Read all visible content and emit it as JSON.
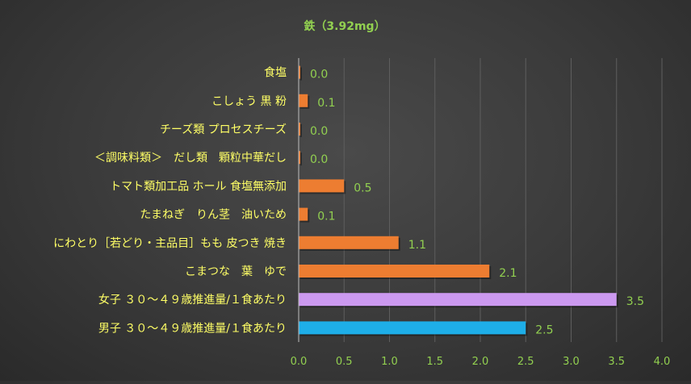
{
  "chart_data": {
    "type": "bar",
    "orientation": "horizontal",
    "title": "鉄（3.92mg）",
    "xlabel": "",
    "ylabel": "",
    "xlim": [
      0,
      4.0
    ],
    "x_ticks": [
      "0.0",
      "0.5",
      "1.0",
      "1.5",
      "2.0",
      "2.5",
      "3.0",
      "3.5",
      "4.0"
    ],
    "grid": true,
    "legend": "none",
    "categories": [
      "食塩",
      "こしょう 黒 粉",
      "チーズ類 プロセスチーズ",
      "＜調味料類＞　だし類　顆粒中華だし",
      "トマト類加工品 ホール 食塩無添加",
      "たまねぎ　りん茎　油いため",
      "にわとり［若どり・主品目］もも 皮つき 焼き",
      "こまつな　葉　ゆで",
      "女子 ３０～４９歳推進量/１食あたり",
      "男子 ３０～４９歳推進量/１食あたり"
    ],
    "values": [
      0.0,
      0.1,
      0.0,
      0.0,
      0.5,
      0.1,
      1.1,
      2.1,
      3.5,
      2.5
    ],
    "value_labels": [
      "0.0",
      "0.1",
      "0.0",
      "0.0",
      "0.5",
      "0.1",
      "1.1",
      "2.1",
      "3.5",
      "2.5"
    ],
    "bar_colors": [
      "#ed7d31",
      "#ed7d31",
      "#ed7d31",
      "#ed7d31",
      "#ed7d31",
      "#ed7d31",
      "#ed7d31",
      "#ed7d31",
      "#cc99f0",
      "#1eaee8"
    ]
  },
  "colors": {
    "title": "#92d050",
    "category_label": "#ffff66",
    "value_label": "#92d050",
    "tick_label": "#92d050",
    "grid": "#5e5e5e",
    "axis": "#bfbfbf"
  }
}
